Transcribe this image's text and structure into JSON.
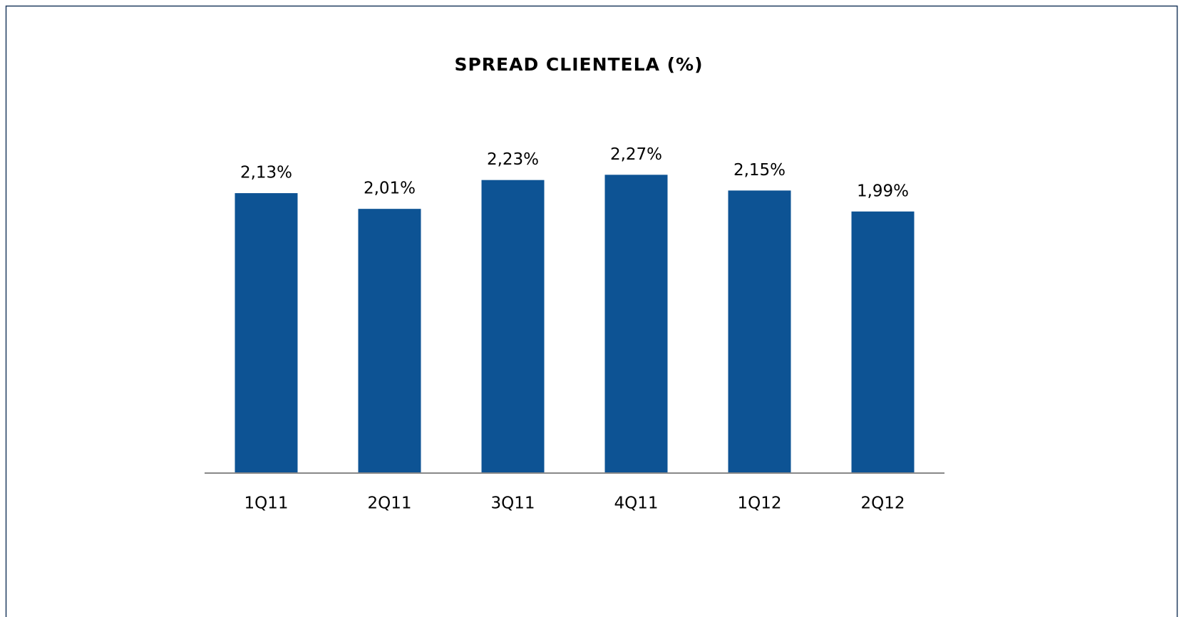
{
  "chart_data": {
    "type": "bar",
    "title": "SPREAD CLIENTELA (%)",
    "categories": [
      "1Q11",
      "2Q11",
      "3Q11",
      "4Q11",
      "1Q12",
      "2Q12"
    ],
    "values": [
      2.13,
      2.01,
      2.23,
      2.27,
      2.15,
      1.99
    ],
    "value_labels": [
      "2,13%",
      "2,01%",
      "2,23%",
      "2,27%",
      "2,15%",
      "1,99%"
    ],
    "color": "#0d5394",
    "ylim": [
      0,
      2.5
    ]
  }
}
